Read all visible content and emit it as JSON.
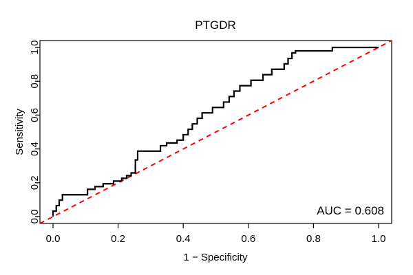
{
  "figure": {
    "title": "PTGDR",
    "xlabel": "1 − Specificity",
    "ylabel": "Sensitivity",
    "auc_label": "AUC = 0.608"
  },
  "colors": {
    "roc_curve": "#000000",
    "chance_line": "#ff0000",
    "box": "#000000",
    "background": "#ffffff",
    "text": "#000000"
  },
  "chart_data": {
    "type": "line",
    "subtype": "roc-step-curve",
    "title": "PTGDR",
    "xlabel": "1 − Specificity",
    "ylabel": "Sensitivity",
    "xlim": [
      0,
      1
    ],
    "ylim": [
      0,
      1
    ],
    "grid": false,
    "legend_position": "none",
    "x_ticks": [
      0.0,
      0.2,
      0.4,
      0.6,
      0.8,
      1.0
    ],
    "x_tick_labels": [
      "0.0",
      "0.2",
      "0.4",
      "0.6",
      "0.8",
      "1.0"
    ],
    "y_ticks": [
      0.0,
      0.2,
      0.4,
      0.6,
      0.8,
      1.0
    ],
    "y_tick_labels": [
      "0.0",
      "0.2",
      "0.4",
      "0.6",
      "0.8",
      "1.0"
    ],
    "annotations": [
      {
        "text": "AUC = 0.608",
        "position": "bottom-right",
        "x": 1.0,
        "y": 0.05
      }
    ],
    "auc": 0.608,
    "series": [
      {
        "name": "ROC curve",
        "style": "step-solid",
        "color": "#000000",
        "line_width": 2,
        "points": [
          [
            0.0,
            0.0
          ],
          [
            0.0,
            0.032
          ],
          [
            0.01,
            0.032
          ],
          [
            0.01,
            0.065
          ],
          [
            0.019,
            0.065
          ],
          [
            0.019,
            0.097
          ],
          [
            0.029,
            0.097
          ],
          [
            0.029,
            0.129
          ],
          [
            0.106,
            0.129
          ],
          [
            0.106,
            0.161
          ],
          [
            0.129,
            0.161
          ],
          [
            0.129,
            0.177
          ],
          [
            0.154,
            0.177
          ],
          [
            0.154,
            0.194
          ],
          [
            0.186,
            0.194
          ],
          [
            0.186,
            0.21
          ],
          [
            0.211,
            0.21
          ],
          [
            0.211,
            0.226
          ],
          [
            0.226,
            0.226
          ],
          [
            0.226,
            0.242
          ],
          [
            0.24,
            0.242
          ],
          [
            0.24,
            0.258
          ],
          [
            0.253,
            0.258
          ],
          [
            0.253,
            0.335
          ],
          [
            0.26,
            0.335
          ],
          [
            0.26,
            0.387
          ],
          [
            0.33,
            0.387
          ],
          [
            0.33,
            0.419
          ],
          [
            0.349,
            0.419
          ],
          [
            0.349,
            0.435
          ],
          [
            0.381,
            0.435
          ],
          [
            0.381,
            0.452
          ],
          [
            0.4,
            0.452
          ],
          [
            0.4,
            0.484
          ],
          [
            0.415,
            0.484
          ],
          [
            0.415,
            0.516
          ],
          [
            0.428,
            0.516
          ],
          [
            0.428,
            0.548
          ],
          [
            0.443,
            0.548
          ],
          [
            0.443,
            0.581
          ],
          [
            0.458,
            0.581
          ],
          [
            0.458,
            0.613
          ],
          [
            0.49,
            0.613
          ],
          [
            0.49,
            0.645
          ],
          [
            0.524,
            0.645
          ],
          [
            0.524,
            0.677
          ],
          [
            0.541,
            0.677
          ],
          [
            0.541,
            0.71
          ],
          [
            0.556,
            0.71
          ],
          [
            0.556,
            0.742
          ],
          [
            0.574,
            0.742
          ],
          [
            0.574,
            0.774
          ],
          [
            0.608,
            0.774
          ],
          [
            0.608,
            0.806
          ],
          [
            0.645,
            0.806
          ],
          [
            0.645,
            0.839
          ],
          [
            0.672,
            0.839
          ],
          [
            0.672,
            0.871
          ],
          [
            0.71,
            0.871
          ],
          [
            0.71,
            0.903
          ],
          [
            0.722,
            0.903
          ],
          [
            0.722,
            0.935
          ],
          [
            0.734,
            0.935
          ],
          [
            0.734,
            0.968
          ],
          [
            0.745,
            0.968
          ],
          [
            0.745,
            0.98
          ],
          [
            0.858,
            0.98
          ],
          [
            0.858,
            1.0
          ],
          [
            1.0,
            1.0
          ]
        ]
      },
      {
        "name": "Chance line",
        "style": "dashed",
        "color": "#ff0000",
        "line_width": 2,
        "points": [
          [
            0,
            0
          ],
          [
            1,
            1
          ]
        ]
      }
    ]
  }
}
